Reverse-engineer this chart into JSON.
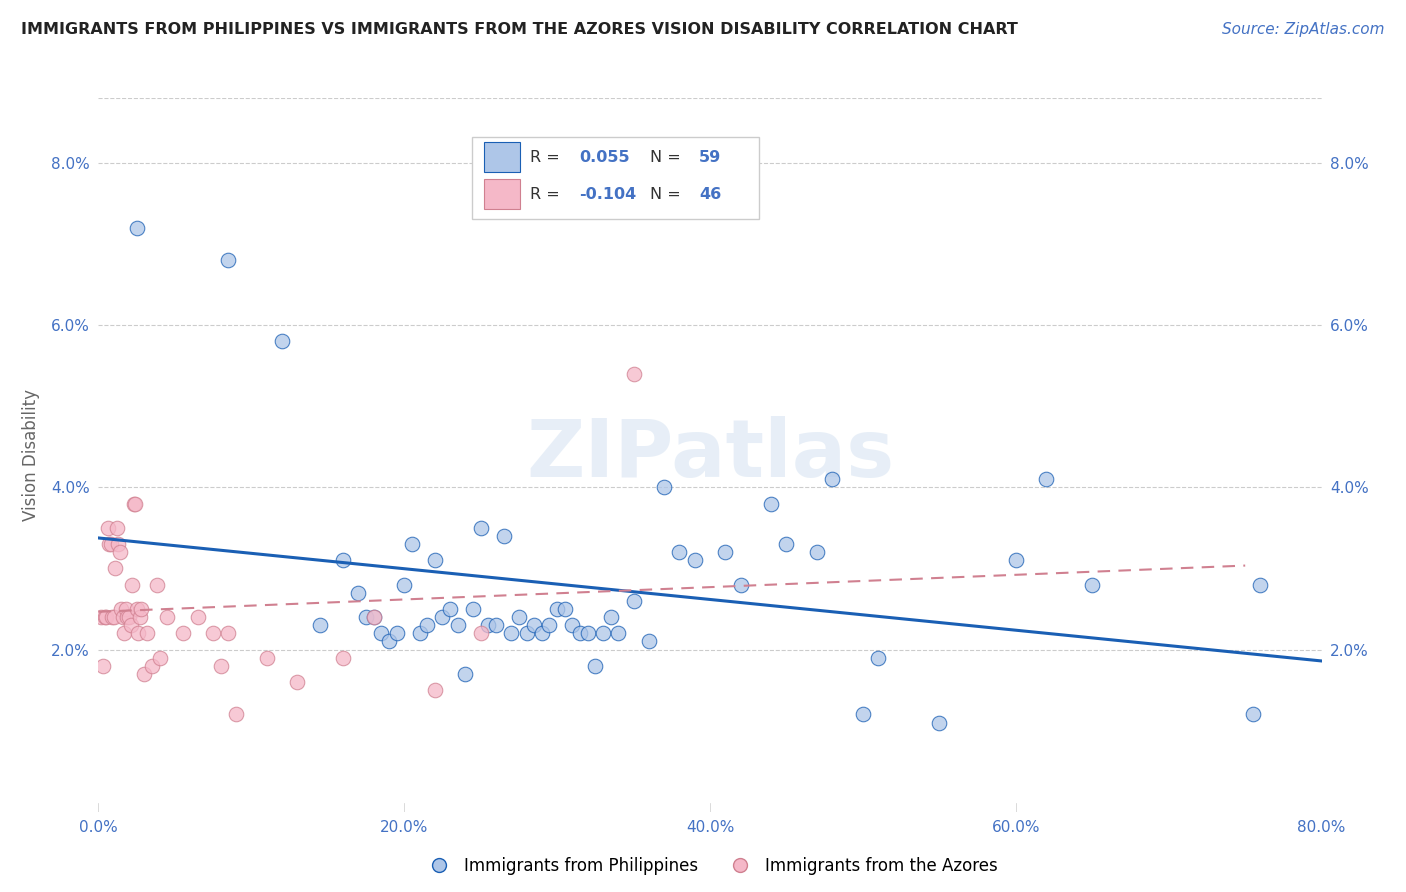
{
  "title": "IMMIGRANTS FROM PHILIPPINES VS IMMIGRANTS FROM THE AZORES VISION DISABILITY CORRELATION CHART",
  "source": "Source: ZipAtlas.com",
  "ylabel": "Vision Disability",
  "watermark": "ZIPatlas",
  "xlim": [
    0.0,
    0.8
  ],
  "ylim": [
    0.0,
    0.088
  ],
  "xticks": [
    0.0,
    0.2,
    0.4,
    0.6,
    0.8
  ],
  "yticks": [
    0.0,
    0.02,
    0.04,
    0.06,
    0.08
  ],
  "ytick_labels": [
    "",
    "2.0%",
    "4.0%",
    "6.0%",
    "8.0%"
  ],
  "xtick_labels": [
    "0.0%",
    "20.0%",
    "40.0%",
    "60.0%",
    "80.0%"
  ],
  "color_blue": "#aec6e8",
  "color_pink": "#f5b8c8",
  "line_blue": "#1a5fb4",
  "line_pink": "#d08090",
  "philippines_x": [
    0.025,
    0.085,
    0.12,
    0.145,
    0.16,
    0.17,
    0.175,
    0.18,
    0.185,
    0.19,
    0.195,
    0.2,
    0.205,
    0.21,
    0.215,
    0.22,
    0.225,
    0.23,
    0.235,
    0.24,
    0.245,
    0.25,
    0.255,
    0.26,
    0.265,
    0.27,
    0.275,
    0.28,
    0.285,
    0.29,
    0.295,
    0.3,
    0.305,
    0.31,
    0.315,
    0.32,
    0.325,
    0.33,
    0.335,
    0.34,
    0.35,
    0.36,
    0.37,
    0.38,
    0.39,
    0.41,
    0.42,
    0.44,
    0.45,
    0.47,
    0.48,
    0.5,
    0.51,
    0.55,
    0.6,
    0.62,
    0.65,
    0.755,
    0.76
  ],
  "philippines_y": [
    0.072,
    0.068,
    0.058,
    0.023,
    0.031,
    0.027,
    0.024,
    0.024,
    0.022,
    0.021,
    0.022,
    0.028,
    0.033,
    0.022,
    0.023,
    0.031,
    0.024,
    0.025,
    0.023,
    0.017,
    0.025,
    0.035,
    0.023,
    0.023,
    0.034,
    0.022,
    0.024,
    0.022,
    0.023,
    0.022,
    0.023,
    0.025,
    0.025,
    0.023,
    0.022,
    0.022,
    0.018,
    0.022,
    0.024,
    0.022,
    0.026,
    0.021,
    0.04,
    0.032,
    0.031,
    0.032,
    0.028,
    0.038,
    0.033,
    0.032,
    0.041,
    0.012,
    0.019,
    0.011,
    0.031,
    0.041,
    0.028,
    0.012,
    0.028
  ],
  "azores_x": [
    0.002,
    0.003,
    0.004,
    0.005,
    0.006,
    0.007,
    0.008,
    0.009,
    0.01,
    0.011,
    0.012,
    0.013,
    0.014,
    0.015,
    0.016,
    0.017,
    0.018,
    0.019,
    0.02,
    0.021,
    0.022,
    0.023,
    0.024,
    0.025,
    0.026,
    0.027,
    0.028,
    0.03,
    0.032,
    0.035,
    0.038,
    0.04,
    0.045,
    0.055,
    0.065,
    0.075,
    0.08,
    0.085,
    0.09,
    0.11,
    0.13,
    0.16,
    0.18,
    0.22,
    0.25,
    0.35
  ],
  "azores_y": [
    0.024,
    0.018,
    0.024,
    0.024,
    0.035,
    0.033,
    0.033,
    0.024,
    0.024,
    0.03,
    0.035,
    0.033,
    0.032,
    0.025,
    0.024,
    0.022,
    0.025,
    0.024,
    0.024,
    0.023,
    0.028,
    0.038,
    0.038,
    0.025,
    0.022,
    0.024,
    0.025,
    0.017,
    0.022,
    0.018,
    0.028,
    0.019,
    0.024,
    0.022,
    0.024,
    0.022,
    0.018,
    0.022,
    0.012,
    0.019,
    0.016,
    0.019,
    0.024,
    0.015,
    0.022,
    0.054
  ],
  "background_color": "#ffffff",
  "grid_color": "#cccccc"
}
